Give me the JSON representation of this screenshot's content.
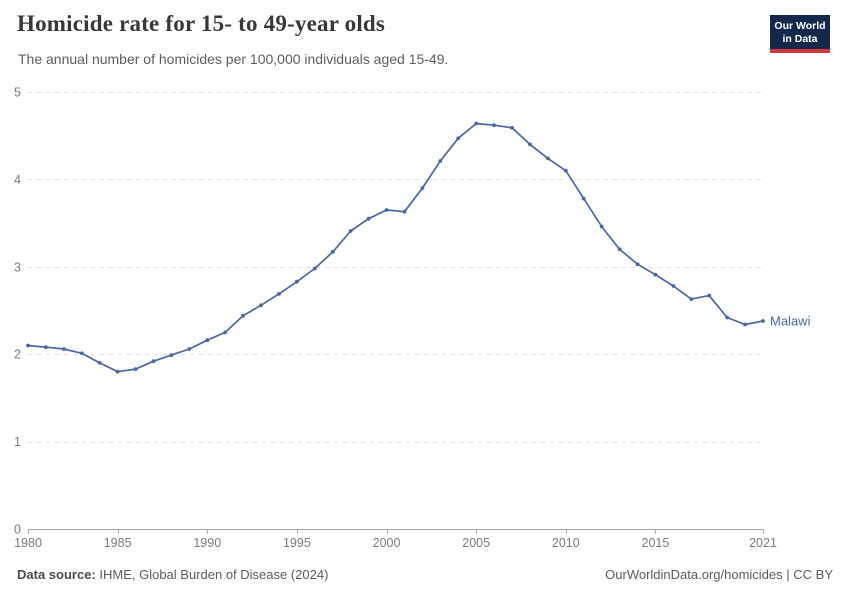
{
  "header": {
    "title": "Homicide rate for 15- to 49-year olds",
    "subtitle": "The annual number of homicides per 100,000 individuals aged 15-49.",
    "logo": {
      "line1": "Our World",
      "line2": "in Data",
      "bg_color": "#12294d",
      "accent_color": "#d0393f"
    }
  },
  "chart_data": {
    "type": "line",
    "title": "Homicide rate for 15- to 49-year olds",
    "subtitle": "The annual number of homicides per 100,000 individuals aged 15-49.",
    "xlabel": "",
    "ylabel": "",
    "xlim": [
      1980,
      2021
    ],
    "ylim": [
      0,
      5
    ],
    "x_ticks": [
      1980,
      1985,
      1990,
      1995,
      2000,
      2005,
      2010,
      2015,
      2021
    ],
    "y_ticks": [
      0,
      1,
      2,
      3,
      4,
      5
    ],
    "grid": "horizontal-dashed",
    "legend_position": "end-of-line",
    "x": [
      1980,
      1981,
      1982,
      1983,
      1984,
      1985,
      1986,
      1987,
      1988,
      1989,
      1990,
      1991,
      1992,
      1993,
      1994,
      1995,
      1996,
      1997,
      1998,
      1999,
      2000,
      2001,
      2002,
      2003,
      2004,
      2005,
      2006,
      2007,
      2008,
      2009,
      2010,
      2011,
      2012,
      2013,
      2014,
      2015,
      2016,
      2017,
      2018,
      2019,
      2020,
      2021
    ],
    "series": [
      {
        "name": "Malawi",
        "color": "#4868a5",
        "values": [
          2.1,
          2.08,
          2.06,
          2.01,
          1.9,
          1.8,
          1.83,
          1.92,
          1.99,
          2.06,
          2.16,
          2.25,
          2.44,
          2.56,
          2.69,
          2.83,
          2.98,
          3.17,
          3.41,
          3.55,
          3.65,
          3.63,
          3.9,
          4.21,
          4.47,
          4.64,
          4.62,
          4.59,
          4.4,
          4.24,
          4.1,
          3.78,
          3.46,
          3.2,
          3.03,
          2.91,
          2.78,
          2.63,
          2.67,
          2.42,
          2.34,
          2.38
        ]
      }
    ],
    "style": {
      "grid_color": "#e0e0e0",
      "axis_color": "#a8a8a8",
      "tick_label_color": "#7d7d7d"
    }
  },
  "footer": {
    "source_label": "Data source:",
    "source_text": "IHME, Global Burden of Disease (2024)",
    "rights": "OurWorldinData.org/homicides | CC BY"
  }
}
